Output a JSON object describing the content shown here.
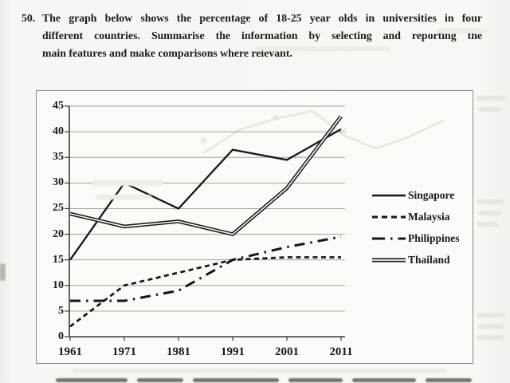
{
  "question": {
    "number": "50.",
    "lines": [
      "The graph below shows the percentage of 18-25 year olds in universities in four",
      "different countries. Summarise the information by selecting and reporting the",
      "main features and make comparisons where relevant."
    ]
  },
  "chart_data": {
    "type": "line",
    "title": "",
    "xlabel": "",
    "ylabel": "",
    "x_labels": [
      "1961",
      "1971",
      "1981",
      "1991",
      "2001",
      "2011"
    ],
    "y_ticks": [
      0,
      5,
      10,
      15,
      20,
      25,
      30,
      35,
      40,
      45
    ],
    "ylim": [
      0,
      45
    ],
    "grid": "horizontal",
    "legend_position": "right",
    "series": [
      {
        "name": "Singapore",
        "style": "solid",
        "values": [
          15,
          30,
          25,
          36.5,
          34.5,
          40.5
        ]
      },
      {
        "name": "Malaysia",
        "style": "dashed",
        "values": [
          2,
          10,
          12.5,
          15,
          15.5,
          15.5
        ]
      },
      {
        "name": "Philippines",
        "style": "dashdot",
        "values": [
          7,
          7,
          9,
          15,
          17.5,
          19.5
        ]
      },
      {
        "name": "Thailand",
        "style": "double",
        "values": [
          24,
          21.5,
          22.5,
          20,
          29,
          43
        ]
      }
    ],
    "line_color": "#161616"
  }
}
